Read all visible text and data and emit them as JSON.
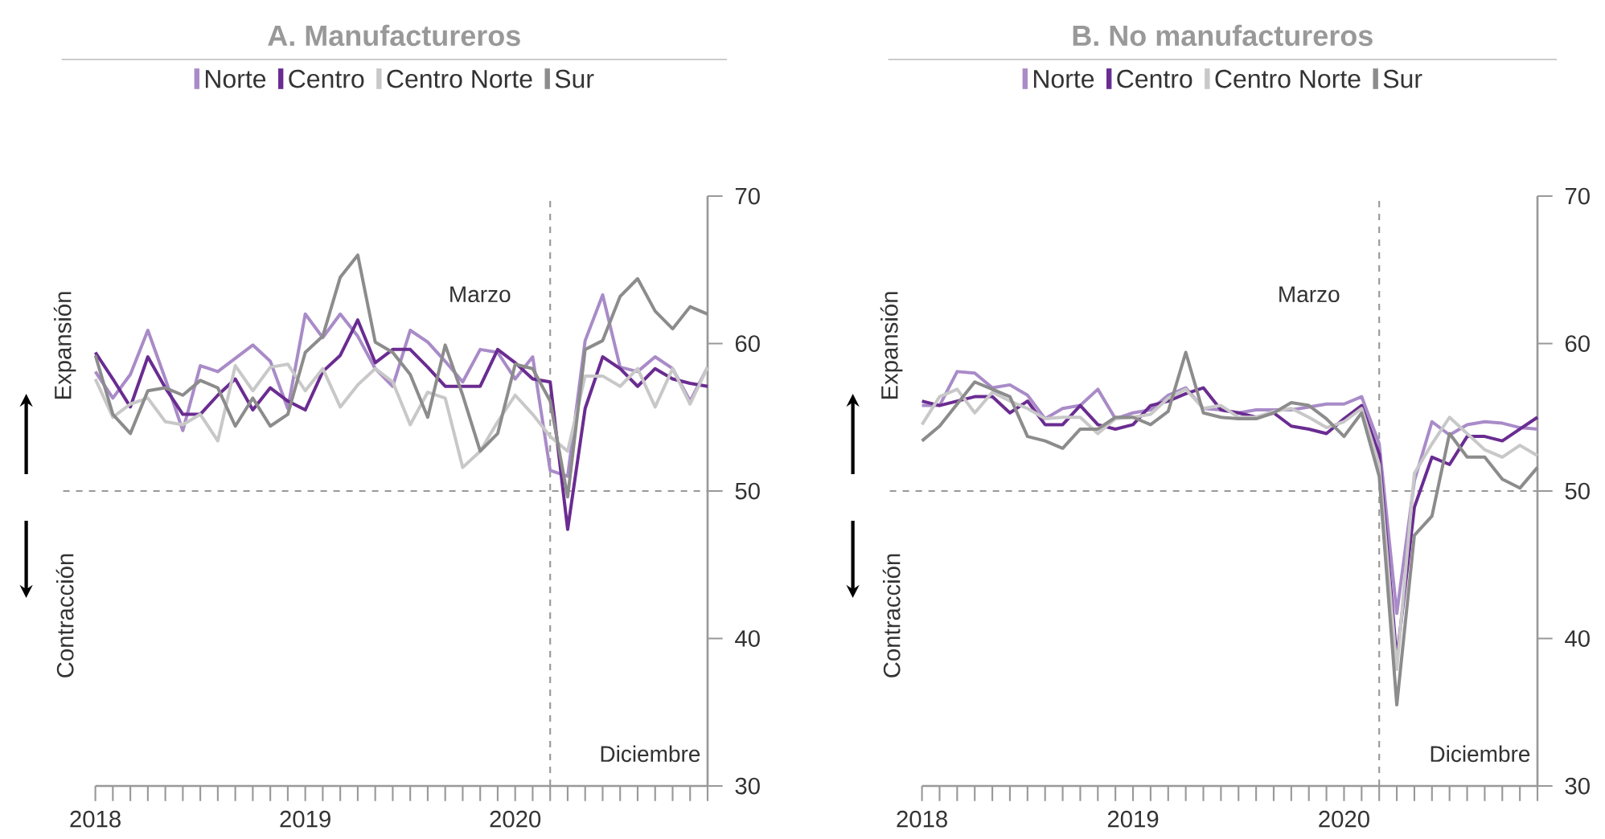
{
  "chart_data": [
    {
      "type": "line",
      "title": "A. Manufactureros",
      "legend": "top",
      "marker": "none",
      "x": [
        "2018-01",
        "2018-02",
        "2018-03",
        "2018-04",
        "2018-05",
        "2018-06",
        "2018-07",
        "2018-08",
        "2018-09",
        "2018-10",
        "2018-11",
        "2018-12",
        "2019-01",
        "2019-02",
        "2019-03",
        "2019-04",
        "2019-05",
        "2019-06",
        "2019-07",
        "2019-08",
        "2019-09",
        "2019-10",
        "2019-11",
        "2019-12",
        "2020-01",
        "2020-02",
        "2020-03",
        "2020-04",
        "2020-05",
        "2020-06",
        "2020-07",
        "2020-08",
        "2020-09",
        "2020-10",
        "2020-11",
        "2020-12"
      ],
      "series": [
        {
          "name": "Norte",
          "color": "#a98bc8",
          "values": [
            58.1,
            56.3,
            57.9,
            60.9,
            57.6,
            54.1,
            58.5,
            58.1,
            59.0,
            59.9,
            58.8,
            55.6,
            62.0,
            60.4,
            62.0,
            60.5,
            58.3,
            57.1,
            60.9,
            60.1,
            58.8,
            57.4,
            59.6,
            59.4,
            57.6,
            59.1,
            51.4,
            51.0,
            60.2,
            63.3,
            58.4,
            58.1,
            59.1,
            58.3,
            56.1,
            58.4
          ]
        },
        {
          "name": "Centro",
          "color": "#6a2c91",
          "values": [
            59.4,
            57.6,
            55.7,
            59.1,
            57.0,
            55.2,
            55.2,
            56.5,
            57.6,
            55.5,
            57.0,
            56.1,
            55.5,
            58.1,
            59.2,
            61.6,
            58.7,
            59.6,
            59.6,
            58.4,
            57.1,
            57.1,
            57.1,
            59.6,
            58.7,
            57.6,
            57.4,
            47.4,
            55.6,
            59.1,
            58.3,
            57.1,
            58.3,
            57.6,
            57.3,
            57.1
          ]
        },
        {
          "name": "Centro Norte",
          "color": "#c8c8c8",
          "values": [
            57.6,
            55.0,
            55.9,
            56.3,
            54.7,
            54.5,
            55.2,
            53.4,
            58.5,
            56.8,
            58.4,
            58.6,
            56.8,
            58.3,
            55.7,
            57.2,
            58.3,
            57.4,
            54.5,
            56.7,
            56.3,
            51.6,
            52.7,
            54.7,
            56.5,
            55.2,
            53.7,
            52.7,
            57.8,
            57.8,
            57.1,
            58.3,
            55.7,
            58.3,
            55.9,
            58.4
          ]
        },
        {
          "name": "Sur",
          "color": "#8c8c8c",
          "values": [
            59.2,
            55.2,
            53.9,
            56.8,
            57.0,
            56.5,
            57.5,
            57.0,
            54.4,
            56.3,
            54.4,
            55.2,
            59.4,
            60.5,
            64.5,
            66.0,
            60.1,
            59.4,
            57.9,
            55.0,
            59.9,
            56.5,
            52.7,
            53.9,
            58.6,
            58.3,
            56.1,
            49.6,
            59.6,
            60.2,
            63.2,
            64.4,
            62.2,
            61.0,
            62.5,
            62.0
          ]
        }
      ],
      "xlim": [
        "2018-01",
        "2020-12"
      ],
      "ylim": [
        30,
        70
      ],
      "yticks": [
        30,
        40,
        50,
        60,
        70
      ],
      "xticks": [
        {
          "value": "2018-01",
          "label": "2018"
        },
        {
          "value": "2018-02",
          "label": null
        },
        {
          "value": "2018-03",
          "label": null
        },
        {
          "value": "2018-04",
          "label": null
        },
        {
          "value": "2018-05",
          "label": null
        },
        {
          "value": "2018-06",
          "label": null
        },
        {
          "value": "2018-07",
          "label": null
        },
        {
          "value": "2018-08",
          "label": null
        },
        {
          "value": "2018-09",
          "label": null
        },
        {
          "value": "2018-10",
          "label": null
        },
        {
          "value": "2018-11",
          "label": null
        },
        {
          "value": "2018-12",
          "label": null
        },
        {
          "value": "2019-01",
          "label": "2019"
        },
        {
          "value": "2019-02",
          "label": null
        },
        {
          "value": "2019-03",
          "label": null
        },
        {
          "value": "2019-04",
          "label": null
        },
        {
          "value": "2019-05",
          "label": null
        },
        {
          "value": "2019-06",
          "label": null
        },
        {
          "value": "2019-07",
          "label": null
        },
        {
          "value": "2019-08",
          "label": null
        },
        {
          "value": "2019-09",
          "label": null
        },
        {
          "value": "2019-10",
          "label": null
        },
        {
          "value": "2019-11",
          "label": null
        },
        {
          "value": "2019-12",
          "label": null
        },
        {
          "value": "2020-01",
          "label": "2020"
        },
        {
          "value": "2020-02",
          "label": null
        },
        {
          "value": "2020-03",
          "label": null
        },
        {
          "value": "2020-04",
          "label": null
        },
        {
          "value": "2020-05",
          "label": null
        },
        {
          "value": "2020-06",
          "label": null
        },
        {
          "value": "2020-07",
          "label": null
        },
        {
          "value": "2020-08",
          "label": null
        },
        {
          "value": "2020-09",
          "label": null
        },
        {
          "value": "2020-10",
          "label": null
        },
        {
          "value": "2020-11",
          "label": null
        },
        {
          "value": "2020-12",
          "label": null
        }
      ],
      "ref_lines": [
        {
          "axis": "x",
          "value": "2020-03",
          "label": "Marzo",
          "line_style": "dashed"
        },
        {
          "axis": "y",
          "value": 50,
          "line_style": "dashed"
        }
      ],
      "annotations": [
        "Expansión",
        "Contracción",
        "Diciembre"
      ]
    },
    {
      "type": "line",
      "title": "B. No manufactureros",
      "legend": "top",
      "marker": "none",
      "x": [
        "2018-01",
        "2018-02",
        "2018-03",
        "2018-04",
        "2018-05",
        "2018-06",
        "2018-07",
        "2018-08",
        "2018-09",
        "2018-10",
        "2018-11",
        "2018-12",
        "2019-01",
        "2019-02",
        "2019-03",
        "2019-04",
        "2019-05",
        "2019-06",
        "2019-07",
        "2019-08",
        "2019-09",
        "2019-10",
        "2019-11",
        "2019-12",
        "2020-01",
        "2020-02",
        "2020-03",
        "2020-04",
        "2020-05",
        "2020-06",
        "2020-07",
        "2020-08",
        "2020-09",
        "2020-10",
        "2020-11",
        "2020-12"
      ],
      "series": [
        {
          "name": "Norte",
          "color": "#a98bc8",
          "values": [
            55.8,
            55.8,
            58.1,
            58.0,
            57.0,
            57.2,
            56.5,
            54.9,
            55.6,
            55.8,
            56.9,
            54.9,
            55.3,
            55.5,
            56.5,
            57.0,
            55.6,
            55.5,
            55.3,
            55.5,
            55.5,
            55.5,
            55.7,
            55.9,
            55.9,
            56.4,
            53.2,
            41.7,
            50.7,
            54.7,
            53.8,
            54.5,
            54.7,
            54.6,
            54.3,
            54.2
          ]
        },
        {
          "name": "Centro",
          "color": "#6a2c91",
          "values": [
            56.1,
            55.8,
            56.1,
            56.4,
            56.4,
            55.3,
            56.1,
            54.5,
            54.5,
            55.8,
            54.5,
            54.2,
            54.5,
            55.8,
            56.1,
            56.6,
            57.0,
            55.5,
            55.3,
            55.0,
            55.3,
            54.4,
            54.2,
            53.9,
            54.9,
            55.8,
            52.5,
            38.6,
            48.9,
            52.3,
            51.8,
            53.7,
            53.7,
            53.4,
            54.2,
            55.0
          ]
        },
        {
          "name": "Centro Norte",
          "color": "#c8c8c8",
          "values": [
            54.5,
            56.4,
            56.9,
            55.3,
            56.7,
            56.1,
            55.6,
            54.9,
            55.0,
            55.0,
            53.9,
            54.9,
            55.0,
            55.2,
            56.3,
            56.9,
            55.6,
            55.8,
            55.0,
            55.0,
            55.4,
            55.6,
            55.0,
            54.3,
            54.7,
            55.6,
            51.8,
            37.9,
            51.2,
            53.2,
            55.0,
            53.9,
            52.8,
            52.3,
            53.1,
            52.4
          ]
        },
        {
          "name": "Sur",
          "color": "#8c8c8c",
          "values": [
            53.4,
            54.4,
            55.9,
            57.4,
            56.9,
            56.4,
            53.7,
            53.4,
            52.9,
            54.2,
            54.2,
            55.0,
            55.0,
            54.5,
            55.4,
            59.4,
            55.3,
            55.0,
            54.9,
            54.9,
            55.3,
            56.0,
            55.8,
            54.9,
            53.7,
            55.3,
            51.0,
            35.5,
            47.0,
            48.3,
            53.9,
            52.3,
            52.3,
            50.8,
            50.2,
            51.6
          ]
        }
      ],
      "xlim": [
        "2018-01",
        "2020-12"
      ],
      "ylim": [
        30,
        70
      ],
      "yticks": [
        30,
        40,
        50,
        60,
        70
      ],
      "xticks": [
        {
          "value": "2018-01",
          "label": "2018"
        },
        {
          "value": "2018-02",
          "label": null
        },
        {
          "value": "2018-03",
          "label": null
        },
        {
          "value": "2018-04",
          "label": null
        },
        {
          "value": "2018-05",
          "label": null
        },
        {
          "value": "2018-06",
          "label": null
        },
        {
          "value": "2018-07",
          "label": null
        },
        {
          "value": "2018-08",
          "label": null
        },
        {
          "value": "2018-09",
          "label": null
        },
        {
          "value": "2018-10",
          "label": null
        },
        {
          "value": "2018-11",
          "label": null
        },
        {
          "value": "2018-12",
          "label": null
        },
        {
          "value": "2019-01",
          "label": "2019"
        },
        {
          "value": "2019-02",
          "label": null
        },
        {
          "value": "2019-03",
          "label": null
        },
        {
          "value": "2019-04",
          "label": null
        },
        {
          "value": "2019-05",
          "label": null
        },
        {
          "value": "2019-06",
          "label": null
        },
        {
          "value": "2019-07",
          "label": null
        },
        {
          "value": "2019-08",
          "label": null
        },
        {
          "value": "2019-09",
          "label": null
        },
        {
          "value": "2019-10",
          "label": null
        },
        {
          "value": "2019-11",
          "label": null
        },
        {
          "value": "2019-12",
          "label": null
        },
        {
          "value": "2020-01",
          "label": "2020"
        },
        {
          "value": "2020-02",
          "label": null
        },
        {
          "value": "2020-03",
          "label": null
        },
        {
          "value": "2020-04",
          "label": null
        },
        {
          "value": "2020-05",
          "label": null
        },
        {
          "value": "2020-06",
          "label": null
        },
        {
          "value": "2020-07",
          "label": null
        },
        {
          "value": "2020-08",
          "label": null
        },
        {
          "value": "2020-09",
          "label": null
        },
        {
          "value": "2020-10",
          "label": null
        },
        {
          "value": "2020-11",
          "label": null
        },
        {
          "value": "2020-12",
          "label": null
        }
      ],
      "ref_lines": [
        {
          "axis": "x",
          "value": "2020-03",
          "label": "Marzo",
          "line_style": "dashed"
        },
        {
          "axis": "y",
          "value": 50,
          "line_style": "dashed"
        }
      ],
      "annotations": [
        "Expansión",
        "Contracción",
        "Diciembre"
      ]
    }
  ]
}
